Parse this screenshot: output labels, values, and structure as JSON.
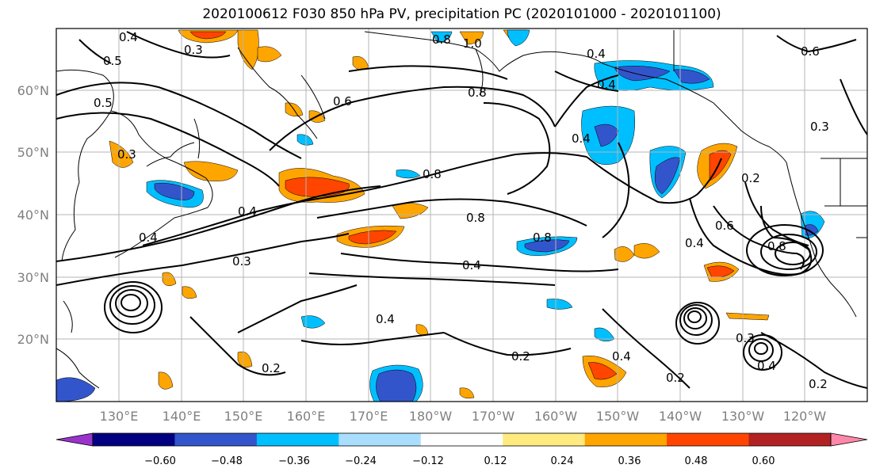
{
  "title": "2020100612 F030 850 hPa PV, precipitation PC (2020101000 - 2020101100)",
  "lon_labels": [
    "130°E",
    "140°E",
    "150°E",
    "160°E",
    "170°E",
    "180°W",
    "170°W",
    "160°W",
    "150°W",
    "140°W",
    "130°W",
    "120°W"
  ],
  "lat_labels": [
    "60°N",
    "50°N",
    "40°N",
    "30°N",
    "20°N"
  ],
  "colorbar": {
    "colors": [
      "#9933cc",
      "#000080",
      "#3355cc",
      "#00bfff",
      "#aadeff",
      "#ffffff",
      "#ffea80",
      "#ffa500",
      "#ff4500",
      "#b22222",
      "#ff88aa"
    ],
    "tick_labels": [
      "−0.60",
      "−0.48",
      "−0.36",
      "−0.24",
      "−0.12",
      "0.12",
      "0.24",
      "0.36",
      "0.48",
      "0.60"
    ]
  },
  "contour_labels": [
    "0.4",
    "0.3",
    "0.5",
    "0.5",
    "0.6",
    "0.8",
    "1.0",
    "0.8",
    "0.4",
    "0.6",
    "0.3",
    "0.8",
    "0.4",
    "0.3",
    "0.4",
    "0.3",
    "0.4",
    "0.4",
    "0.8",
    "0.8",
    "0.4",
    "0.4",
    "0.2",
    "0.2",
    "0.4",
    "0.2",
    "0.4",
    "0.6",
    "0.8",
    "0.4",
    "0.2",
    "0.2",
    "0.3"
  ]
}
